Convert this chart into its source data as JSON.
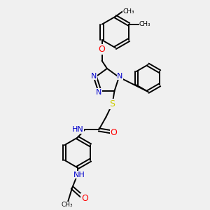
{
  "bg_color": "#f0f0f0",
  "bond_color": "#000000",
  "N_color": "#0000cc",
  "O_color": "#ff0000",
  "S_color": "#cccc00",
  "line_width": 1.4,
  "font_size": 8,
  "figsize": [
    3.0,
    3.0
  ],
  "dpi": 100,
  "xlim": [
    0,
    10
  ],
  "ylim": [
    0,
    10
  ]
}
